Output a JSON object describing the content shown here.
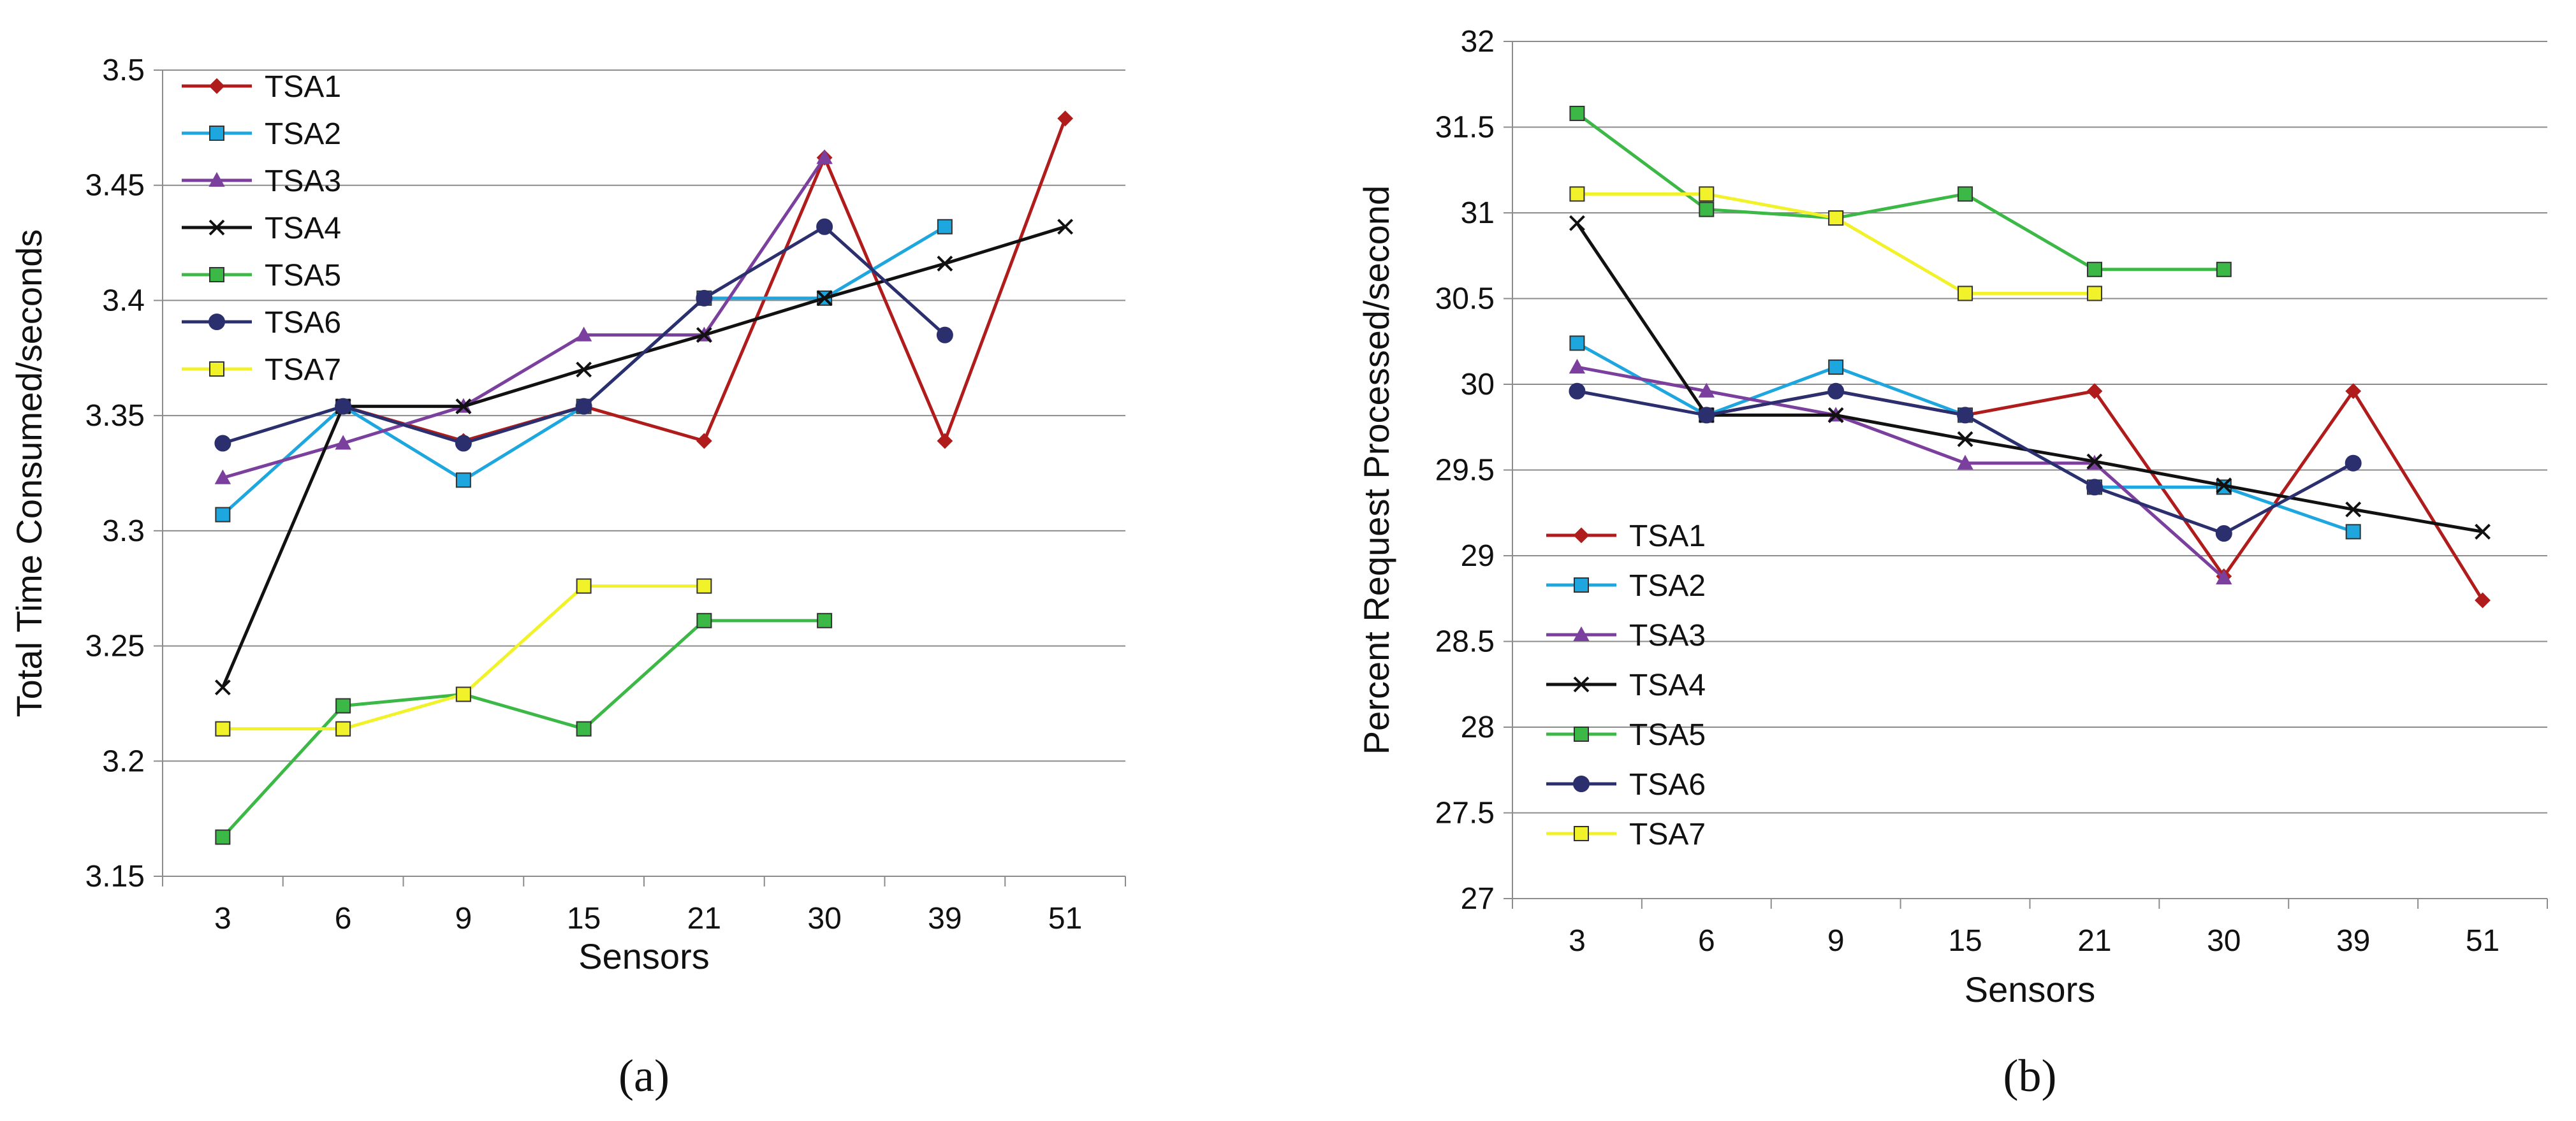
{
  "chart_data": [
    {
      "type": "line",
      "caption": "(a)",
      "xlabel": "Sensors",
      "ylabel": "Total Time Consumed/seconds",
      "categories": [
        "3",
        "6",
        "9",
        "15",
        "21",
        "30",
        "39",
        "51"
      ],
      "ylim": [
        3.15,
        3.5
      ],
      "yticks": [
        "3.15",
        "3.2",
        "3.25",
        "3.3",
        "3.35",
        "3.4",
        "3.45",
        "3.5"
      ],
      "grid": true,
      "legend_position": "top-left",
      "series": [
        {
          "name": "TSA1",
          "color": "#b01c1c",
          "marker": "diamond",
          "values": [
            null,
            3.354,
            3.339,
            3.354,
            3.339,
            3.462,
            3.339,
            3.479
          ]
        },
        {
          "name": "TSA2",
          "color": "#1ea6df",
          "marker": "square",
          "values": [
            3.307,
            3.354,
            3.322,
            3.354,
            3.401,
            3.401,
            3.432,
            null
          ]
        },
        {
          "name": "TSA3",
          "color": "#7b3f9e",
          "marker": "triangle",
          "values": [
            3.323,
            3.338,
            3.354,
            3.385,
            3.385,
            3.462,
            null,
            null
          ]
        },
        {
          "name": "TSA4",
          "color": "#111111",
          "marker": "x",
          "values": [
            3.232,
            3.354,
            3.354,
            3.37,
            3.385,
            3.401,
            3.416,
            3.432
          ]
        },
        {
          "name": "TSA5",
          "color": "#3cb846",
          "marker": "square",
          "values": [
            3.167,
            3.224,
            3.229,
            3.214,
            3.261,
            3.261,
            null,
            null
          ]
        },
        {
          "name": "TSA6",
          "color": "#2b2f6e",
          "marker": "circle",
          "values": [
            3.338,
            3.354,
            3.338,
            3.354,
            3.401,
            3.432,
            3.385,
            null
          ]
        },
        {
          "name": "TSA7",
          "color": "#f2f22a",
          "marker": "square",
          "values": [
            3.214,
            3.214,
            3.229,
            3.276,
            3.276,
            null,
            null,
            null
          ]
        }
      ]
    },
    {
      "type": "line",
      "caption": "(b)",
      "xlabel": "Sensors",
      "ylabel": "Percent Request Processed/second",
      "categories": [
        "3",
        "6",
        "9",
        "15",
        "21",
        "30",
        "39",
        "51"
      ],
      "ylim": [
        27,
        32
      ],
      "yticks": [
        "27",
        "27.5",
        "28",
        "28.5",
        "29",
        "29.5",
        "30",
        "30.5",
        "31",
        "31.5",
        "32"
      ],
      "grid": true,
      "legend_position": "bottom-left",
      "series": [
        {
          "name": "TSA1",
          "color": "#b01c1c",
          "marker": "diamond",
          "values": [
            null,
            29.82,
            29.96,
            29.82,
            29.96,
            28.88,
            29.96,
            28.74
          ]
        },
        {
          "name": "TSA2",
          "color": "#1ea6df",
          "marker": "square",
          "values": [
            30.24,
            29.82,
            30.1,
            29.82,
            29.4,
            29.4,
            29.14,
            null
          ]
        },
        {
          "name": "TSA3",
          "color": "#7b3f9e",
          "marker": "triangle",
          "values": [
            30.1,
            29.96,
            29.82,
            29.54,
            29.54,
            28.87,
            null,
            null
          ]
        },
        {
          "name": "TSA4",
          "color": "#111111",
          "marker": "x",
          "values": [
            30.94,
            29.82,
            29.82,
            29.68,
            29.55,
            29.41,
            29.27,
            29.14
          ]
        },
        {
          "name": "TSA5",
          "color": "#3cb846",
          "marker": "square",
          "values": [
            31.58,
            31.02,
            30.97,
            31.11,
            30.67,
            30.67,
            null,
            null
          ]
        },
        {
          "name": "TSA6",
          "color": "#2b2f6e",
          "marker": "circle",
          "values": [
            29.96,
            29.82,
            29.96,
            29.82,
            29.4,
            29.13,
            29.54,
            null
          ]
        },
        {
          "name": "TSA7",
          "color": "#f2f22a",
          "marker": "square",
          "values": [
            31.11,
            31.11,
            30.97,
            30.53,
            30.53,
            null,
            null,
            null
          ]
        }
      ]
    }
  ]
}
